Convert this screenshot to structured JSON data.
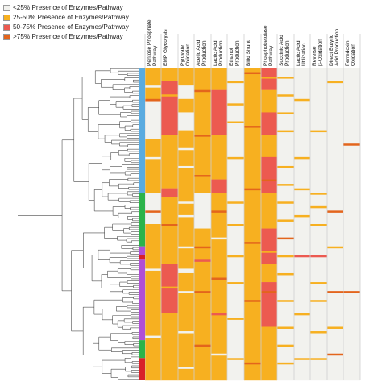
{
  "chart_data": {
    "type": "heatmap",
    "title": "",
    "legend": {
      "placement": "top-left",
      "items": [
        {
          "label": "<25% Presence of Enzymes/Pathway",
          "color": "#f2f2ee"
        },
        {
          "label": "25-50% Presence of Enzymes/Pathway",
          "color": "#f7b020"
        },
        {
          "label": "50-75% Presence of Enzymes/Pathway",
          "color": "#ec5a50"
        },
        {
          "label": ">75% Presence of Enzymes/Pathway",
          "color": "#e3651c"
        }
      ]
    },
    "columns": [
      [
        "Pentose Phosphate",
        "Pathway"
      ],
      [
        "EMP Glycolysis"
      ],
      [
        "Pyruvate",
        "Oxidation"
      ],
      [
        "Acetic Acid",
        "Production"
      ],
      [
        "Lactic Acid",
        "Production"
      ],
      [
        "Ethanol",
        "Production"
      ],
      [
        "Bifid Shunt"
      ],
      [
        "Phosphoketolase",
        "Pathway"
      ],
      [
        "Succinic Acid",
        "Production"
      ],
      [
        "Lactic Acid",
        "Utilization"
      ],
      [
        "Reverse",
        "β-Oxidation"
      ],
      [
        "Direct Butyric",
        "Acid Production"
      ],
      [
        "Ferredoxin",
        "Oxidation"
      ]
    ],
    "cluster_sidebar": [
      {
        "color": "#5aabe0",
        "rows": [
          0,
          56
        ]
      },
      {
        "color": "#2bb34a",
        "rows": [
          56,
          80
        ]
      },
      {
        "color": "#b04ed6",
        "rows": [
          80,
          84
        ]
      },
      {
        "color": "#d8202a",
        "rows": [
          84,
          86
        ]
      },
      {
        "color": "#b04ed6",
        "rows": [
          86,
          122
        ]
      },
      {
        "color": "#2bb34a",
        "rows": [
          122,
          130
        ]
      },
      {
        "color": "#d8202a",
        "rows": [
          130,
          140
        ]
      }
    ],
    "column_segments": [
      [
        [
          0,
          14,
          "O"
        ],
        [
          14,
          15,
          "D"
        ],
        [
          15,
          32,
          "W"
        ],
        [
          32,
          56,
          "O"
        ],
        [
          56,
          70,
          "W"
        ],
        [
          70,
          140,
          "O"
        ]
      ],
      [
        [
          0,
          6,
          "O"
        ],
        [
          6,
          30,
          "R"
        ],
        [
          30,
          54,
          "O"
        ],
        [
          54,
          58,
          "R"
        ],
        [
          58,
          88,
          "O"
        ],
        [
          88,
          110,
          "R"
        ],
        [
          110,
          140,
          "O"
        ]
      ],
      [
        [
          0,
          8,
          "O"
        ],
        [
          8,
          14,
          "W"
        ],
        [
          14,
          20,
          "O"
        ],
        [
          20,
          28,
          "W"
        ],
        [
          28,
          90,
          "O"
        ],
        [
          90,
          92,
          "W"
        ],
        [
          92,
          140,
          "O"
        ]
      ],
      [
        [
          0,
          56,
          "O"
        ],
        [
          56,
          72,
          "W"
        ],
        [
          72,
          140,
          "O"
        ]
      ],
      [
        [
          0,
          10,
          "O"
        ],
        [
          10,
          30,
          "R"
        ],
        [
          30,
          50,
          "O"
        ],
        [
          50,
          56,
          "R"
        ],
        [
          56,
          140,
          "O"
        ]
      ],
      [
        [
          0,
          140,
          "W"
        ]
      ],
      [
        [
          0,
          140,
          "O"
        ]
      ],
      [
        [
          0,
          10,
          "R"
        ],
        [
          10,
          20,
          "O"
        ],
        [
          20,
          30,
          "R"
        ],
        [
          30,
          40,
          "O"
        ],
        [
          40,
          56,
          "R"
        ],
        [
          56,
          72,
          "O"
        ],
        [
          72,
          88,
          "R"
        ],
        [
          88,
          96,
          "O"
        ],
        [
          96,
          116,
          "R"
        ],
        [
          116,
          140,
          "O"
        ]
      ],
      [
        [
          0,
          140,
          "W"
        ]
      ],
      [
        [
          0,
          140,
          "W"
        ]
      ],
      [
        [
          0,
          140,
          "W"
        ]
      ],
      [
        [
          0,
          140,
          "W"
        ]
      ],
      [
        [
          0,
          140,
          "W"
        ]
      ]
    ],
    "column_marks": [
      [
        [
          8,
          "W"
        ],
        [
          40,
          "W"
        ],
        [
          64,
          "D"
        ],
        [
          90,
          "W"
        ],
        [
          120,
          "W"
        ]
      ],
      [
        [
          12,
          "O"
        ],
        [
          40,
          "O"
        ],
        [
          70,
          "D"
        ],
        [
          98,
          "O"
        ],
        [
          126,
          "O"
        ]
      ],
      [
        [
          36,
          "W"
        ],
        [
          44,
          "W"
        ],
        [
          60,
          "W"
        ],
        [
          66,
          "W"
        ],
        [
          80,
          "W"
        ],
        [
          100,
          "W"
        ],
        [
          118,
          "W"
        ],
        [
          134,
          "W"
        ]
      ],
      [
        [
          10,
          "D"
        ],
        [
          30,
          "D"
        ],
        [
          48,
          "D"
        ],
        [
          80,
          "D"
        ],
        [
          86,
          "R"
        ],
        [
          100,
          "D"
        ],
        [
          124,
          "D"
        ]
      ],
      [
        [
          64,
          "D"
        ],
        [
          76,
          "W"
        ],
        [
          94,
          "D"
        ],
        [
          110,
          "R"
        ],
        [
          128,
          "W"
        ]
      ],
      [
        [
          6,
          "O"
        ],
        [
          16,
          "O"
        ],
        [
          24,
          "O"
        ],
        [
          40,
          "O"
        ],
        [
          60,
          "O"
        ],
        [
          70,
          "O"
        ],
        [
          84,
          "O"
        ],
        [
          96,
          "O"
        ],
        [
          112,
          "O"
        ],
        [
          130,
          "O"
        ]
      ],
      [
        [
          2,
          "D"
        ],
        [
          26,
          "D"
        ],
        [
          54,
          "D"
        ],
        [
          78,
          "D"
        ],
        [
          104,
          "D"
        ],
        [
          132,
          "D"
        ]
      ],
      [
        [
          4,
          "O"
        ],
        [
          34,
          "O"
        ],
        [
          50,
          "D"
        ],
        [
          64,
          "O"
        ],
        [
          82,
          "O"
        ],
        [
          100,
          "D"
        ],
        [
          120,
          "O"
        ],
        [
          136,
          "O"
        ]
      ],
      [
        [
          4,
          "O"
        ],
        [
          12,
          "O"
        ],
        [
          20,
          "O"
        ],
        [
          28,
          "O"
        ],
        [
          44,
          "O"
        ],
        [
          52,
          "O"
        ],
        [
          60,
          "O"
        ],
        [
          68,
          "O"
        ],
        [
          76,
          "D"
        ],
        [
          84,
          "O"
        ],
        [
          92,
          "O"
        ],
        [
          104,
          "O"
        ],
        [
          116,
          "O"
        ],
        [
          124,
          "O"
        ],
        [
          132,
          "O"
        ]
      ],
      [
        [
          14,
          "O"
        ],
        [
          40,
          "O"
        ],
        [
          54,
          "O"
        ],
        [
          66,
          "O"
        ],
        [
          84,
          "R"
        ],
        [
          110,
          "O"
        ],
        [
          130,
          "O"
        ]
      ],
      [
        [
          28,
          "O"
        ],
        [
          56,
          "O"
        ],
        [
          62,
          "O"
        ],
        [
          70,
          "O"
        ],
        [
          84,
          "R"
        ],
        [
          96,
          "O"
        ],
        [
          104,
          "O"
        ],
        [
          118,
          "O"
        ],
        [
          130,
          "O"
        ]
      ],
      [
        [
          6,
          "O"
        ],
        [
          64,
          "D"
        ],
        [
          80,
          "O"
        ],
        [
          100,
          "D"
        ],
        [
          116,
          "O"
        ],
        [
          128,
          "D"
        ]
      ],
      [
        [
          34,
          "D"
        ],
        [
          100,
          "D"
        ]
      ]
    ]
  }
}
